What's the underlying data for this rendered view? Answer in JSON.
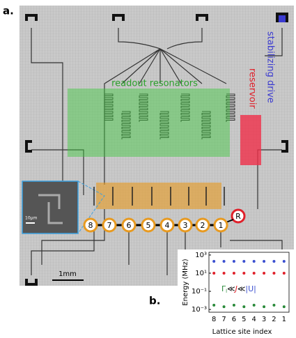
{
  "panel_a": {
    "label": "a.",
    "readout_label": "readout resonators",
    "reservoir_label": "reservoir",
    "drive_label": "stabilizing drive",
    "inset_scale": "10μm",
    "scale_bar": "1mm",
    "sites": [
      "8",
      "7",
      "6",
      "5",
      "4",
      "3",
      "2",
      "1"
    ],
    "reservoir_site": "R"
  },
  "panel_b": {
    "label": "b."
  },
  "chart_data": {
    "type": "scatter",
    "xlabel": "Lattice site index",
    "ylabel": "Energy (MHz)",
    "categories": [
      "8",
      "7",
      "6",
      "5",
      "4",
      "3",
      "2",
      "1"
    ],
    "series": [
      {
        "color": "#3b4fd0",
        "values": [
          200,
          200,
          200,
          200,
          200,
          200,
          200,
          200
        ]
      },
      {
        "color": "#e0202a",
        "values": [
          10,
          10,
          10,
          10,
          10,
          10,
          10,
          10
        ]
      },
      {
        "color": "#2a8a3a",
        "values": [
          0.003,
          0.002,
          0.003,
          0.002,
          0.003,
          0.002,
          0.003,
          0.002
        ]
      }
    ],
    "log_y": true,
    "ylim": [
      0.0005,
      2000
    ],
    "yticks": [
      {
        "value": 1000,
        "label": "10³"
      },
      {
        "value": 10,
        "label": "10¹"
      },
      {
        "value": 0.1,
        "label": "10⁻¹"
      },
      {
        "value": 0.001,
        "label": "10⁻³"
      }
    ],
    "annotation": [
      "Γ",
      "l",
      "≪",
      "J",
      "≪",
      "|U|"
    ]
  }
}
